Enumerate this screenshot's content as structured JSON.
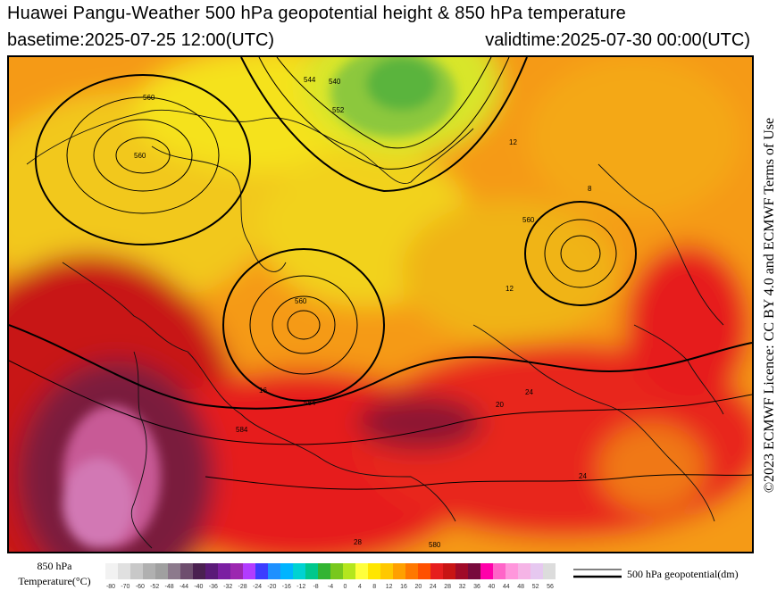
{
  "header": {
    "title": "Huawei Pangu-Weather 500 hPa geopotential height & 850 hPa temperature",
    "basetime": "basetime:2025-07-25 12:00(UTC)",
    "validtime": "validtime:2025-07-30 00:00(UTC)"
  },
  "license": "©2023 ECMWF Licence: CC BY 4.0 and ECMWF Terms of Use",
  "legend": {
    "title_line1": "850 hPa",
    "title_line2": "Temperature(°C)",
    "contour_label": "500 hPa geopotential(dm)",
    "ticks": [
      "-80",
      "-70",
      "-60",
      "-52",
      "-48",
      "-44",
      "-40",
      "-36",
      "-32",
      "-28",
      "-24",
      "-20",
      "-16",
      "-12",
      "-8",
      "-4",
      "0",
      "4",
      "8",
      "12",
      "16",
      "20",
      "24",
      "28",
      "32",
      "36",
      "40",
      "44",
      "48",
      "52",
      "56"
    ],
    "colors": [
      "#f2f2f2",
      "#e0e0e0",
      "#c8c8c8",
      "#b0b0b0",
      "#a0a0a0",
      "#8c7a8c",
      "#6e4e6e",
      "#4a2050",
      "#5a1a78",
      "#7b1fa2",
      "#9c27b0",
      "#b23cff",
      "#3c3cff",
      "#1e90ff",
      "#00b4ff",
      "#00d2d2",
      "#00c88c",
      "#32b432",
      "#78c81e",
      "#b4e61e",
      "#ffff3c",
      "#ffe600",
      "#ffc800",
      "#ffa000",
      "#ff7800",
      "#ff5000",
      "#e61e1e",
      "#c81414",
      "#a00a28",
      "#780a3c",
      "#ff00aa",
      "#ff64c8",
      "#ff96dc",
      "#f5b4e6",
      "#e6c8f0",
      "#dcdcdc"
    ]
  },
  "map": {
    "contour_labels": [
      "560",
      "560",
      "560",
      "560",
      "540",
      "552",
      "544",
      "584",
      "584",
      "580"
    ],
    "temp_labels": [
      "12",
      "12",
      "8",
      "16",
      "20",
      "24",
      "24",
      "28"
    ]
  }
}
